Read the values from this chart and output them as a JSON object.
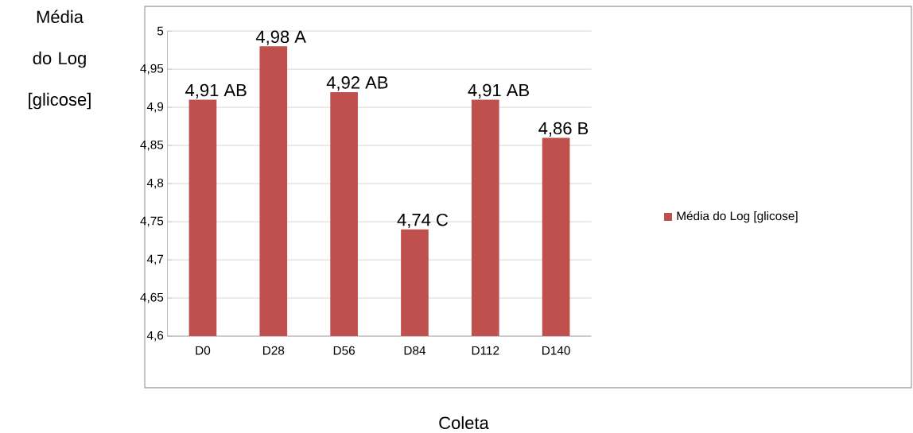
{
  "chart_data": {
    "type": "bar",
    "xlabel": "Coleta",
    "ylabel": "Média do Log [glicose]",
    "categories": [
      "D0",
      "D28",
      "D56",
      "D84",
      "D112",
      "D140"
    ],
    "series": [
      {
        "name": "Média do Log [glicose]",
        "color": "#c0504d",
        "values": [
          4.91,
          4.98,
          4.92,
          4.74,
          4.91,
          4.86
        ],
        "value_labels": [
          "4,91 AB",
          "4,98  A",
          "4,92 AB",
          "4,74 C",
          "4,91 AB",
          "4,86 B"
        ]
      }
    ],
    "ylim": [
      4.6,
      5
    ],
    "yticks": [
      {
        "value": 4.6,
        "label": "4,6"
      },
      {
        "value": 4.65,
        "label": "4,65"
      },
      {
        "value": 4.7,
        "label": "4,7"
      },
      {
        "value": 4.75,
        "label": "4,75"
      },
      {
        "value": 4.8,
        "label": "4,8"
      },
      {
        "value": 4.85,
        "label": "4,85"
      },
      {
        "value": 4.9,
        "label": "4,9"
      },
      {
        "value": 4.95,
        "label": "4,95"
      },
      {
        "value": 5,
        "label": "5"
      }
    ],
    "grid": "y",
    "legend": "right"
  }
}
